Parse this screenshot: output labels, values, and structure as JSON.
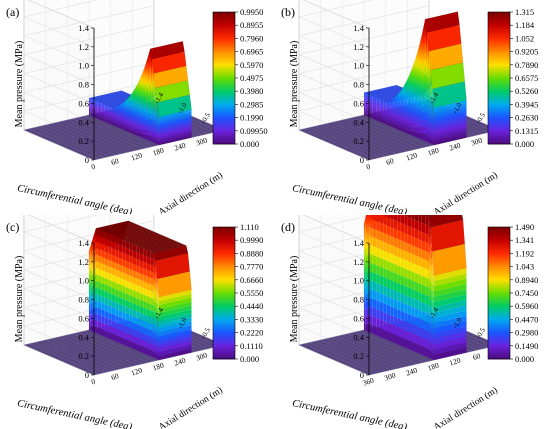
{
  "chart_data": [
    {
      "panel_label": "(a)",
      "type": "surface3d",
      "zlabel": "Mean pressure (MPa)",
      "xlabel": "Circumferential angle (deg)",
      "ylabel": "Axial direction (m)",
      "z_ticks": [
        "0",
        "0.2",
        "0.4",
        "0.6",
        "0.8",
        "1.0",
        "1.2",
        "1.4"
      ],
      "x_ticks": [
        "0",
        "60",
        "120",
        "180",
        "240",
        "300",
        "360"
      ],
      "y_ticks": [
        "-1.4",
        "-1.0",
        "-0.5",
        "0.0"
      ],
      "zlim": [
        0,
        1.4
      ],
      "colorbar_ticks": [
        "0.9950",
        "0.8955",
        "0.7960",
        "0.6965",
        "0.5970",
        "0.4975",
        "0.3980",
        "0.2985",
        "0.1990",
        "0.09950",
        "0.000"
      ],
      "max_value": 0.995,
      "pressure_zone": {
        "start_deg": 180,
        "end_deg": 270
      },
      "profile": "peak-then-decay"
    },
    {
      "panel_label": "(b)",
      "type": "surface3d",
      "zlabel": "Mean pressure (MPa)",
      "xlabel": "Circumferential angle (deg)",
      "ylabel": "Axial direction (m)",
      "z_ticks": [
        "0",
        "0.2",
        "0.4",
        "0.6",
        "0.8",
        "1.0",
        "1.2",
        "1.4"
      ],
      "x_ticks": [
        "0",
        "60",
        "120",
        "180",
        "240",
        "300",
        "360"
      ],
      "y_ticks": [
        "-1.4",
        "-1.0",
        "-0.5",
        "0.0"
      ],
      "zlim": [
        0,
        1.4
      ],
      "colorbar_ticks": [
        "1.315",
        "1.184",
        "1.052",
        "0.9205",
        "0.7890",
        "0.6575",
        "0.5260",
        "0.3945",
        "0.2630",
        "0.1315",
        "0.000"
      ],
      "max_value": 1.315,
      "pressure_zone": {
        "start_deg": 180,
        "end_deg": 270
      },
      "profile": "peak-then-decay"
    },
    {
      "panel_label": "(c)",
      "type": "surface3d",
      "zlabel": "Mean pressure (MPa)",
      "xlabel": "Circumferential angle (deg)",
      "ylabel": "Axial direction (m)",
      "z_ticks": [
        "0",
        "0.2",
        "0.4",
        "0.6",
        "0.8",
        "1.0",
        "1.2",
        "1.4"
      ],
      "x_ticks": [
        "0",
        "60",
        "120",
        "180",
        "240",
        "300",
        "360"
      ],
      "y_ticks": [
        "-1.4",
        "-1.0",
        "-0.5",
        "0.0"
      ],
      "zlim": [
        0,
        1.4
      ],
      "colorbar_ticks": [
        "1.110",
        "0.9990",
        "0.8880",
        "0.7770",
        "0.6660",
        "0.5550",
        "0.4440",
        "0.3330",
        "0.2220",
        "0.1110",
        "0.000"
      ],
      "max_value": 1.11,
      "pressure_zone": {
        "start_deg": 180,
        "end_deg": 270
      },
      "profile": "plateau"
    },
    {
      "panel_label": "(d)",
      "type": "surface3d",
      "zlabel": "Mean pressure (MPa)",
      "xlabel": "Circumferential angle (deg)",
      "ylabel": "Axial direction (m)",
      "z_ticks": [
        "0",
        "0.2",
        "0.4",
        "0.6",
        "0.8",
        "1.0",
        "1.2",
        "1.4"
      ],
      "x_ticks": [
        "360",
        "300",
        "240",
        "180",
        "120",
        "60",
        "0"
      ],
      "y_ticks": [
        "-1.4",
        "-1.0",
        "-0.5",
        "0.0"
      ],
      "zlim": [
        0,
        1.4
      ],
      "colorbar_ticks": [
        "1.490",
        "1.341",
        "1.192",
        "1.043",
        "0.8940",
        "0.7450",
        "0.5960",
        "0.4470",
        "0.2980",
        "0.1490",
        "0.000"
      ],
      "max_value": 1.49,
      "pressure_zone": {
        "start_deg": 180,
        "end_deg": 90
      },
      "profile": "plateau"
    }
  ],
  "colors": {
    "colorbar": [
      "#7a0000",
      "#c40000",
      "#ff2a00",
      "#ff8c00",
      "#ffe000",
      "#66dd00",
      "#00cc66",
      "#00aaee",
      "#1a55ff",
      "#6a22dd",
      "#4b0a7a"
    ],
    "frame": "#c8c8c8",
    "floor": "#3c2a6a"
  }
}
